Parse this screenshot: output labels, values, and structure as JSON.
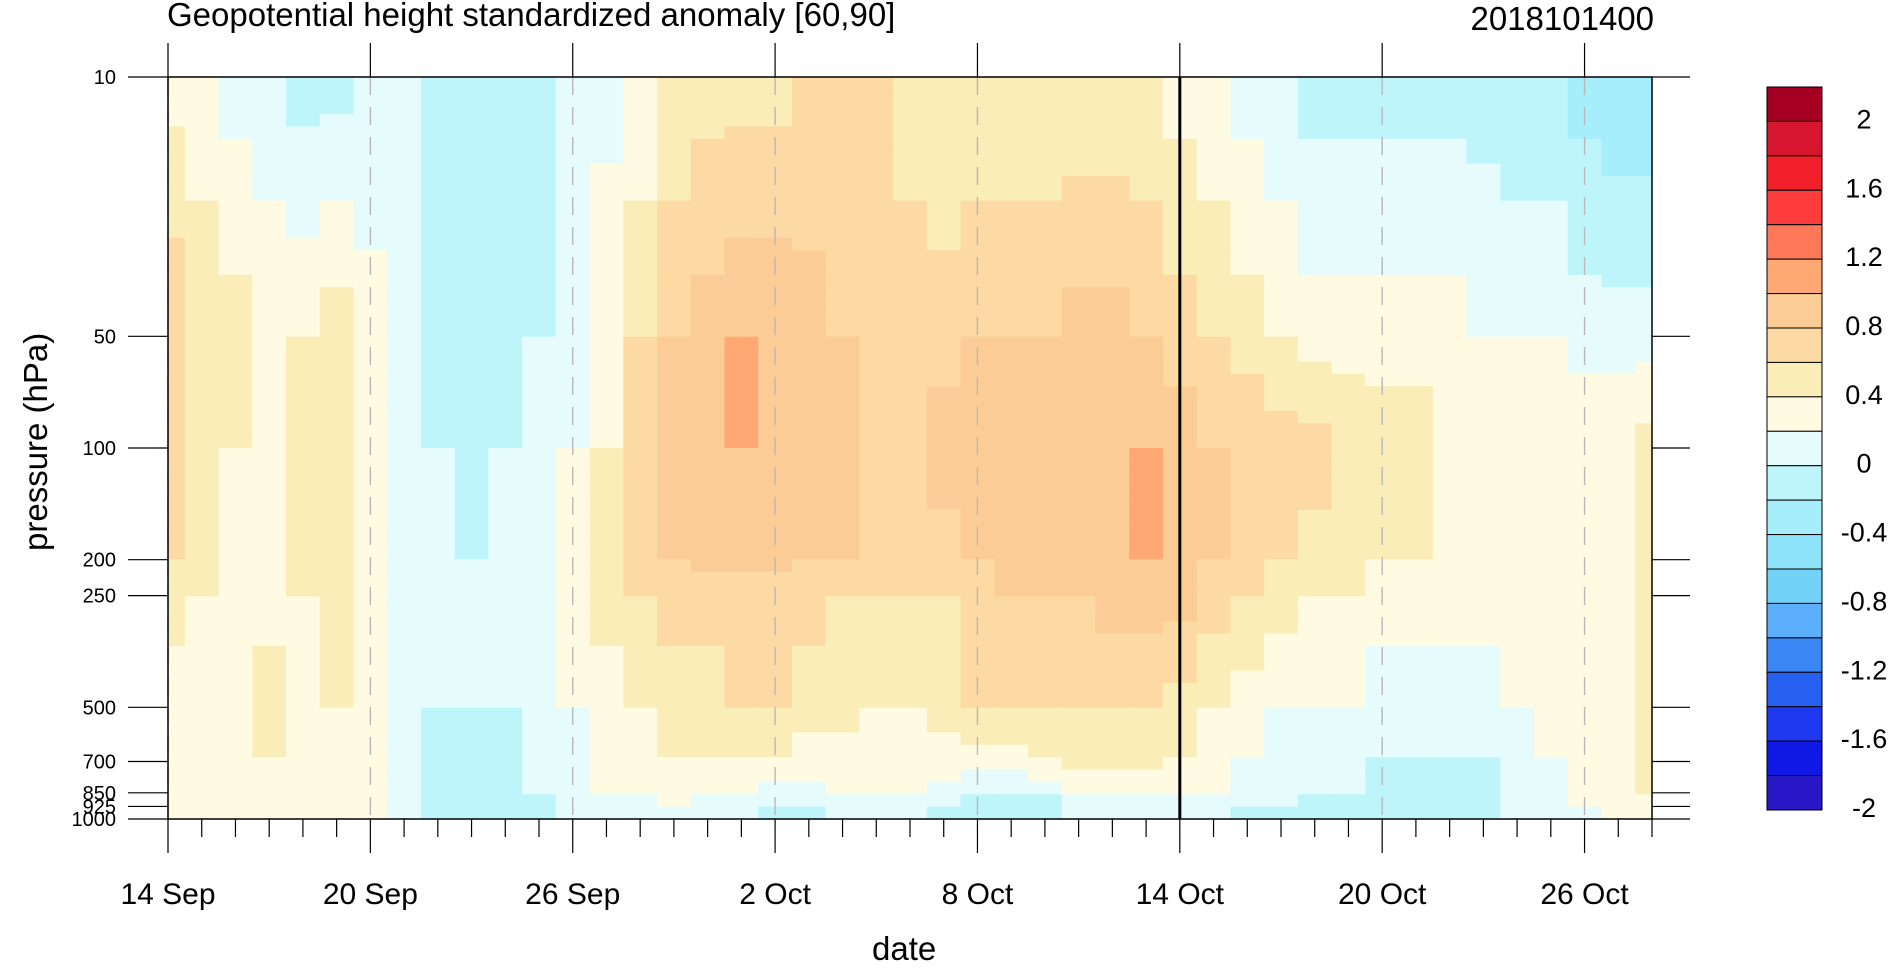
{
  "chart_data": {
    "type": "heatmap",
    "title": "Geopotential height standardized anomaly [60,90]",
    "title_right": "2018101400",
    "xlabel": "date",
    "ylabel": "pressure (hPa)",
    "x_ticks": [
      "14 Sep",
      "20 Sep",
      "26 Sep",
      "2 Oct",
      "8 Oct",
      "14 Oct",
      "20 Oct",
      "26 Oct"
    ],
    "y_ticks": [
      "10",
      "50",
      "100",
      "200",
      "250",
      "500",
      "700",
      "850",
      "925",
      "1000"
    ],
    "y_scale": "log",
    "ylim": [
      1000,
      10
    ],
    "xlim": [
      "14 Sep",
      "28 Oct"
    ],
    "marked_date": "14 Oct",
    "colorbar": {
      "labels": [
        "2",
        "1.6",
        "1.2",
        "0.8",
        "0.4",
        "0",
        "-0.4",
        "-0.8",
        "-1.2",
        "-1.6",
        "-2"
      ],
      "colors": [
        "#a50021",
        "#d8152f",
        "#f01f2a",
        "#ff3d3d",
        "#ff7858",
        "#ffa873",
        "#fccc96",
        "#fdd9a3",
        "#fbedb7",
        "#fffbe3",
        "#e6fbfc",
        "#bdf5fb",
        "#a6eefb",
        "#8de3f9",
        "#72d1f6",
        "#5caffa",
        "#3a86f4",
        "#2560f0",
        "#1d38ee",
        "#1018e5",
        "#2818c8"
      ]
    },
    "levels": [
      "10",
      "50",
      "100",
      "200",
      "250",
      "500",
      "700",
      "850",
      "925",
      "1000"
    ],
    "dates": [
      "14 Sep",
      "15 Sep",
      "16 Sep",
      "17 Sep",
      "18 Sep",
      "19 Sep",
      "20 Sep",
      "21 Sep",
      "22 Sep",
      "23 Sep",
      "24 Sep",
      "25 Sep",
      "26 Sep",
      "27 Sep",
      "28 Sep",
      "29 Sep",
      "30 Sep",
      "1 Oct",
      "2 Oct",
      "3 Oct",
      "4 Oct",
      "5 Oct",
      "6 Oct",
      "7 Oct",
      "8 Oct",
      "9 Oct",
      "10 Oct",
      "11 Oct",
      "12 Oct",
      "13 Oct",
      "14 Oct",
      "15 Oct",
      "16 Oct",
      "17 Oct",
      "18 Oct",
      "19 Oct",
      "20 Oct",
      "21 Oct",
      "22 Oct",
      "23 Oct",
      "24 Oct",
      "25 Oct",
      "26 Oct",
      "27 Oct",
      "28 Oct"
    ],
    "values": [
      [
        0.1,
        0.0,
        -0.1,
        -0.2,
        -0.3,
        -0.3,
        -0.2,
        -0.1,
        -0.2,
        -0.3,
        -0.3,
        -0.3,
        -0.2,
        -0.1,
        0.0,
        0.2,
        0.3,
        0.3,
        0.3,
        0.4,
        0.4,
        0.4,
        0.3,
        0.2,
        0.2,
        0.2,
        0.2,
        0.2,
        0.2,
        0.2,
        0.1,
        0.0,
        -0.1,
        -0.2,
        -0.3,
        -0.3,
        -0.3,
        -0.3,
        -0.3,
        -0.3,
        -0.4,
        -0.4,
        -0.5,
        -0.6,
        -0.6
      ],
      [
        0.6,
        0.4,
        0.3,
        0.2,
        0.2,
        0.3,
        0.1,
        -0.2,
        -0.3,
        -0.3,
        -0.3,
        -0.2,
        0.0,
        0.2,
        0.4,
        0.6,
        0.7,
        0.8,
        0.8,
        0.7,
        0.6,
        0.5,
        0.5,
        0.5,
        0.6,
        0.6,
        0.6,
        0.7,
        0.7,
        0.6,
        0.5,
        0.4,
        0.3,
        0.2,
        0.1,
        0.1,
        0.1,
        0.1,
        0.1,
        0.0,
        0.0,
        0.0,
        -0.1,
        -0.1,
        -0.1
      ],
      [
        0.5,
        0.3,
        0.2,
        0.1,
        0.3,
        0.4,
        0.1,
        -0.1,
        -0.2,
        -0.3,
        -0.2,
        -0.1,
        0.0,
        0.2,
        0.5,
        0.7,
        0.8,
        0.8,
        0.7,
        0.7,
        0.7,
        0.6,
        0.6,
        0.7,
        0.8,
        0.7,
        0.7,
        0.8,
        0.8,
        0.8,
        0.7,
        0.6,
        0.6,
        0.5,
        0.5,
        0.4,
        0.3,
        0.3,
        0.2,
        0.2,
        0.2,
        0.2,
        0.2,
        0.2,
        0.3
      ],
      [
        0.4,
        0.3,
        0.2,
        0.1,
        0.3,
        0.4,
        0.2,
        0.0,
        -0.1,
        -0.2,
        -0.1,
        -0.1,
        0.1,
        0.3,
        0.5,
        0.6,
        0.7,
        0.7,
        0.7,
        0.6,
        0.6,
        0.5,
        0.5,
        0.5,
        0.6,
        0.6,
        0.6,
        0.7,
        0.7,
        0.8,
        0.8,
        0.6,
        0.5,
        0.4,
        0.3,
        0.3,
        0.2,
        0.2,
        0.1,
        0.1,
        0.1,
        0.1,
        0.1,
        0.2,
        0.3
      ],
      [
        0.3,
        0.2,
        0.1,
        0.1,
        0.2,
        0.3,
        0.2,
        0.0,
        -0.1,
        -0.1,
        -0.1,
        0.0,
        0.1,
        0.3,
        0.4,
        0.5,
        0.5,
        0.5,
        0.5,
        0.5,
        0.4,
        0.4,
        0.4,
        0.4,
        0.5,
        0.6,
        0.6,
        0.6,
        0.7,
        0.7,
        0.7,
        0.5,
        0.4,
        0.3,
        0.2,
        0.2,
        0.1,
        0.1,
        0.1,
        0.1,
        0.1,
        0.2,
        0.2,
        0.2,
        0.3
      ],
      [
        0.1,
        0.1,
        0.2,
        0.3,
        0.2,
        0.2,
        0.2,
        -0.1,
        -0.2,
        -0.2,
        -0.2,
        -0.1,
        0.0,
        0.1,
        0.2,
        0.3,
        0.3,
        0.4,
        0.4,
        0.3,
        0.3,
        0.2,
        0.2,
        0.3,
        0.4,
        0.4,
        0.4,
        0.4,
        0.4,
        0.4,
        0.3,
        0.2,
        0.1,
        0.0,
        0.0,
        0.0,
        -0.1,
        -0.1,
        -0.1,
        -0.1,
        0.0,
        0.1,
        0.2,
        0.2,
        0.3
      ],
      [
        0.1,
        0.1,
        0.2,
        0.2,
        0.2,
        0.2,
        0.2,
        -0.1,
        -0.2,
        -0.2,
        -0.2,
        -0.1,
        0.0,
        0.1,
        0.1,
        0.2,
        0.2,
        0.2,
        0.2,
        0.1,
        0.1,
        0.1,
        0.1,
        0.1,
        0.1,
        0.1,
        0.2,
        0.3,
        0.3,
        0.3,
        0.2,
        0.1,
        0.0,
        -0.1,
        -0.1,
        -0.1,
        -0.2,
        -0.2,
        -0.2,
        -0.2,
        -0.1,
        0.0,
        0.1,
        0.2,
        0.3
      ],
      [
        0.1,
        0.1,
        0.2,
        0.2,
        0.2,
        0.2,
        0.1,
        -0.1,
        -0.2,
        -0.2,
        -0.2,
        -0.2,
        -0.1,
        0.0,
        0.0,
        0.1,
        0.1,
        0.0,
        -0.1,
        -0.1,
        0.0,
        0.0,
        0.0,
        -0.1,
        -0.2,
        -0.2,
        -0.2,
        0.0,
        0.0,
        0.0,
        0.0,
        0.0,
        -0.1,
        -0.1,
        -0.2,
        -0.2,
        -0.2,
        -0.2,
        -0.2,
        -0.2,
        -0.1,
        0.0,
        0.1,
        0.1,
        0.2
      ],
      [
        0.1,
        0.1,
        0.1,
        0.1,
        0.1,
        0.1,
        0.1,
        -0.1,
        -0.3,
        -0.3,
        -0.2,
        -0.2,
        -0.1,
        0.0,
        0.0,
        0.0,
        -0.1,
        -0.1,
        -0.2,
        -0.2,
        -0.1,
        -0.1,
        -0.1,
        -0.2,
        -0.3,
        -0.3,
        -0.3,
        -0.1,
        -0.1,
        -0.1,
        -0.1,
        -0.1,
        -0.2,
        -0.2,
        -0.3,
        -0.3,
        -0.3,
        -0.3,
        -0.2,
        -0.2,
        -0.1,
        0.0,
        0.0,
        0.1,
        0.1
      ],
      [
        0.1,
        0.1,
        0.1,
        0.1,
        0.1,
        0.1,
        0.1,
        -0.1,
        -0.3,
        -0.4,
        -0.3,
        -0.2,
        -0.1,
        0.0,
        0.0,
        0.0,
        -0.1,
        -0.2,
        -0.3,
        -0.2,
        -0.2,
        -0.2,
        -0.2,
        -0.2,
        -0.3,
        -0.3,
        -0.3,
        -0.2,
        -0.2,
        -0.2,
        -0.2,
        -0.2,
        -0.2,
        -0.3,
        -0.3,
        -0.3,
        -0.3,
        -0.3,
        -0.2,
        -0.2,
        -0.1,
        -0.1,
        0.0,
        0.0,
        0.1
      ]
    ]
  }
}
